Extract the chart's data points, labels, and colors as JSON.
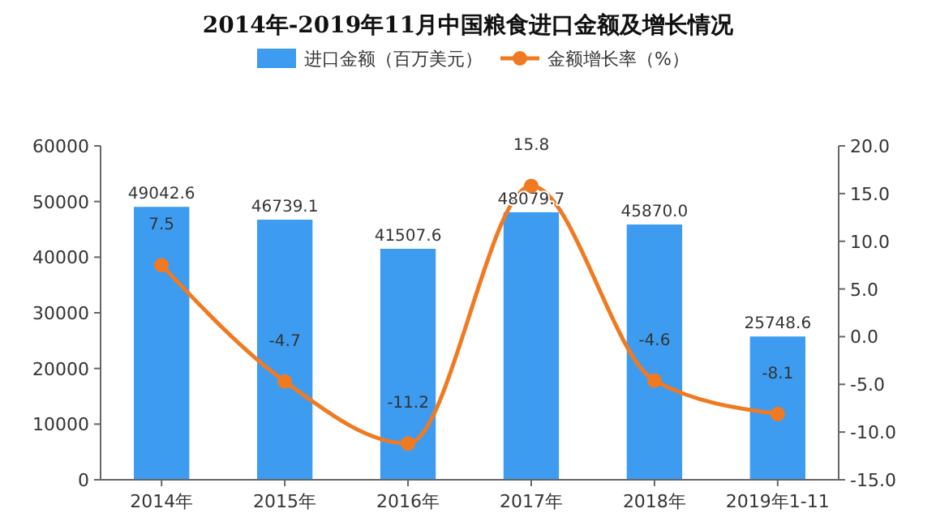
{
  "chart_data": {
    "type": "bar",
    "title": "2014年-2019年11月中国粮食进口金额及增长情况",
    "categories": [
      "2014年",
      "2015年",
      "2016年",
      "2017年",
      "2018年",
      "2019年1-11"
    ],
    "series": [
      {
        "name": "进口金额（百万美元）",
        "color": "#3d9cf0",
        "values": [
          49042.6,
          46739.1,
          41507.6,
          48079.7,
          45870.0,
          25748.6
        ],
        "value_labels": [
          "49042.6",
          "46739.1",
          "41507.6",
          "48079.7",
          "45870.0",
          "25748.6"
        ]
      },
      {
        "name": "金额增长率（%）",
        "type": "line",
        "axis": "y2",
        "color": "#f07a22",
        "marker": "circle",
        "values": [
          7.5,
          -4.7,
          -11.2,
          15.8,
          -4.6,
          -8.1
        ],
        "value_labels": [
          "7.5",
          "-4.7",
          "-11.2",
          "15.8",
          "-4.6",
          "-8.1"
        ]
      }
    ],
    "ylim": [
      0,
      60000
    ],
    "yticks": [
      0,
      10000,
      20000,
      30000,
      40000,
      50000,
      60000
    ],
    "y2lim": [
      -15,
      20
    ],
    "y2ticks": [
      {
        "value": -15,
        "label": "-15.0"
      },
      {
        "value": -10,
        "label": "-10.0"
      },
      {
        "value": -5,
        "label": "-5.0"
      },
      {
        "value": 0,
        "label": "0.0"
      },
      {
        "value": 5,
        "label": "5.0"
      },
      {
        "value": 10,
        "label": "10.0"
      },
      {
        "value": 15,
        "label": "15.0"
      },
      {
        "value": 20,
        "label": "20.0"
      }
    ],
    "legend": "top",
    "grid": false
  }
}
